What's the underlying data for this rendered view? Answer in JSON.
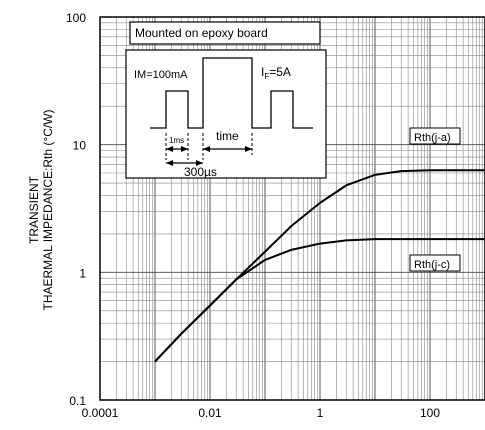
{
  "chart_data": {
    "type": "line",
    "xscale": "log",
    "yscale": "log",
    "xlim": [
      0.0001,
      1000
    ],
    "ylim": [
      0.1,
      100
    ],
    "x_tick_labels": [
      "0.0001",
      "0.01",
      "1",
      "100"
    ],
    "x_tick_values": [
      0.0001,
      0.01,
      1,
      100
    ],
    "y_tick_labels": [
      "0.1",
      "1",
      "10",
      "100"
    ],
    "y_tick_values": [
      0.1,
      1,
      10,
      100
    ],
    "ylabel_line1": "TRANSIENT",
    "ylabel_line2": "THAERMAL IMPEDANCE:Rth (°C/W)",
    "grid": true,
    "series": [
      {
        "name": "Rth(j-a)",
        "x": [
          0.001,
          0.003,
          0.01,
          0.03,
          0.1,
          0.3,
          1,
          3,
          10,
          30,
          100,
          300,
          1000
        ],
        "y": [
          0.2,
          0.33,
          0.55,
          0.88,
          1.45,
          2.3,
          3.5,
          4.8,
          5.8,
          6.2,
          6.3,
          6.3,
          6.3
        ]
      },
      {
        "name": "Rth(j-c)",
        "x": [
          0.001,
          0.003,
          0.01,
          0.03,
          0.1,
          0.3,
          1,
          3,
          10,
          30,
          100,
          300,
          1000
        ],
        "y": [
          0.2,
          0.33,
          0.55,
          0.88,
          1.25,
          1.5,
          1.68,
          1.78,
          1.82,
          1.82,
          1.82,
          1.82,
          1.82
        ]
      }
    ],
    "inset": {
      "title": "Mounted on epoxy board",
      "im_label": "IM=100mA",
      "if_label_prefix": "I",
      "if_label_sub": "F",
      "if_label_suffix": "=5A",
      "width_label": "1ms",
      "time_label": "time",
      "period_label": "300µs"
    }
  }
}
